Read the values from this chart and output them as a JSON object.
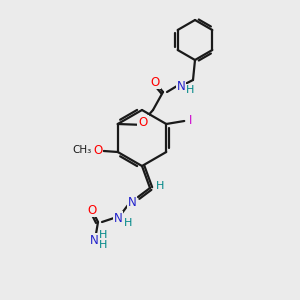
{
  "background_color": "#ebebeb",
  "bond_color": "#1a1a1a",
  "atom_colors": {
    "O": "#ff0000",
    "N": "#2222cc",
    "H": "#008888",
    "I": "#cc00cc",
    "C": "#1a1a1a"
  },
  "figsize": [
    3.0,
    3.0
  ],
  "dpi": 100
}
